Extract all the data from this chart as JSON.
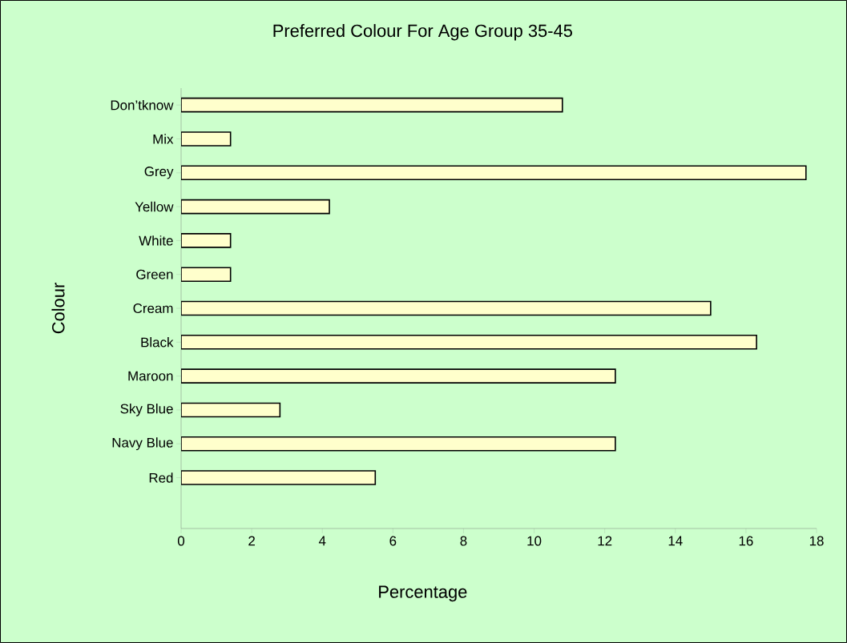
{
  "chart_data": {
    "type": "bar",
    "orientation": "horizontal",
    "title": "Preferred Colour For Age Group 35-45",
    "xlabel": "Percentage",
    "ylabel": "Colour",
    "categories": [
      "Don’tknow",
      "Mix",
      "Grey",
      "Yellow",
      "White",
      "Green",
      "Cream",
      "Black",
      "Maroon",
      "Sky Blue",
      "Navy Blue",
      "Red"
    ],
    "values": [
      10.8,
      1.4,
      17.7,
      4.2,
      1.4,
      1.4,
      15.0,
      16.3,
      12.3,
      2.8,
      12.3,
      5.5
    ],
    "color": "#ffffcc",
    "xlim": [
      0,
      18
    ],
    "xticks": [
      0,
      2,
      4,
      6,
      8,
      10,
      12,
      14,
      16,
      18
    ],
    "grid": false
  }
}
